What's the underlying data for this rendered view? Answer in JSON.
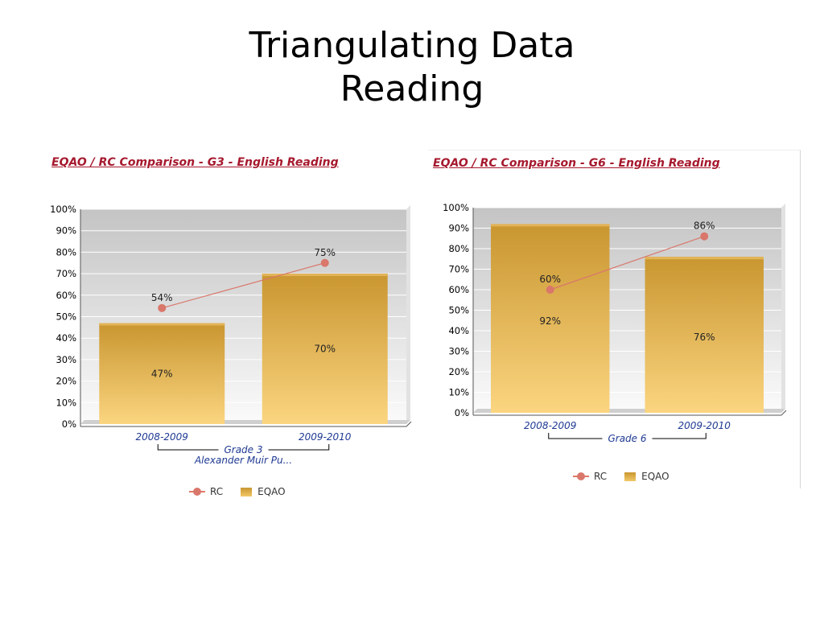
{
  "slide": {
    "title_line1": "Triangulating Data",
    "title_line2": "Reading"
  },
  "colors": {
    "heading": "#a6192e",
    "bar_top": "#c99630",
    "bar_bottom": "#fbd580",
    "line": "#d9776b",
    "category_text": "#1f3a93"
  },
  "chart_data": [
    {
      "type": "bar",
      "title": "EQAO / RC Comparison - G3 - English Reading",
      "categories": [
        "2008-2009",
        "2009-2010"
      ],
      "group_label": "Grade 3",
      "school_label": "Alexander Muir Pu...",
      "yticks": [
        "0%",
        "10%",
        "20%",
        "30%",
        "40%",
        "50%",
        "60%",
        "70%",
        "80%",
        "90%",
        "100%"
      ],
      "ylim": [
        0,
        100
      ],
      "grid": true,
      "legend_position": "bottom",
      "series": [
        {
          "name": "EQAO",
          "kind": "bar",
          "values": [
            47,
            70
          ],
          "labels": [
            "47%",
            "70%"
          ]
        },
        {
          "name": "RC",
          "kind": "line",
          "values": [
            54,
            75
          ],
          "labels": [
            "54%",
            "75%"
          ]
        }
      ]
    },
    {
      "type": "bar",
      "title": "EQAO / RC Comparison - G6 - English Reading",
      "categories": [
        "2008-2009",
        "2009-2010"
      ],
      "group_label": "Grade 6",
      "yticks": [
        "0%",
        "10%",
        "20%",
        "30%",
        "40%",
        "50%",
        "60%",
        "70%",
        "80%",
        "90%",
        "100%"
      ],
      "ylim": [
        0,
        100
      ],
      "grid": true,
      "legend_position": "bottom",
      "series": [
        {
          "name": "EQAO",
          "kind": "bar",
          "values": [
            92,
            76
          ],
          "labels": [
            "92%",
            "76%"
          ]
        },
        {
          "name": "RC",
          "kind": "line",
          "values": [
            60,
            86
          ],
          "labels": [
            "60%",
            "86%"
          ]
        }
      ]
    }
  ]
}
